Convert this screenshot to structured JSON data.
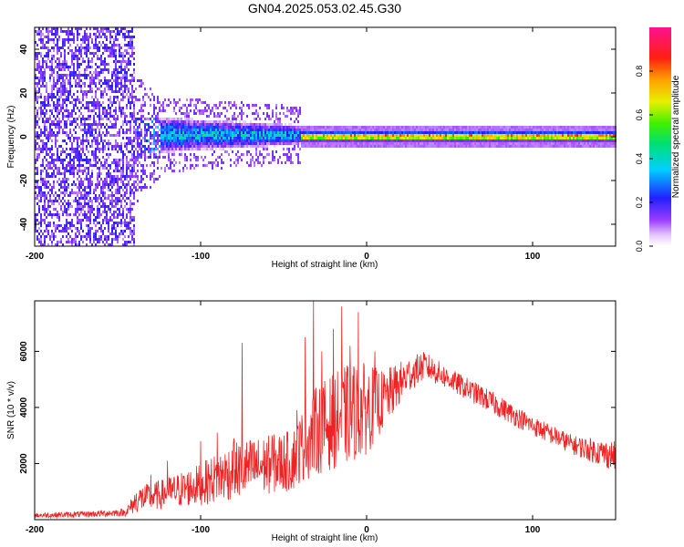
{
  "figure": {
    "title": "GN04.2025.053.02.45.G30"
  },
  "colors": {
    "snr_line": "#ee2222",
    "axis": "#000000",
    "background": "#ffffff"
  },
  "chart_data": [
    {
      "type": "heatmap",
      "title": "",
      "xlabel": "Height of straight line (km)",
      "ylabel": "Frequency (Hz)",
      "xlim": [
        -200,
        150
      ],
      "ylim": [
        -50,
        50
      ],
      "xticks": [
        -200,
        -100,
        0,
        100
      ],
      "yticks": [
        -40,
        -20,
        0,
        20,
        40
      ],
      "colorbar": {
        "label": "Normalized spectral amplitude",
        "range": [
          0,
          1
        ],
        "ticks": [
          0.0,
          0.2,
          0.4,
          0.6,
          0.8
        ],
        "colormap": "rainbow (white-violet-blue-cyan-green-yellow-orange-red-magenta)"
      },
      "features": [
        {
          "name": "low-altitude noise",
          "x_range": [
            -200,
            -140
          ],
          "freq_range": [
            -50,
            50
          ],
          "amplitude": 0.15
        },
        {
          "name": "widening spread",
          "x_range": [
            -140,
            -40
          ],
          "freq_range": [
            -10,
            10
          ],
          "amplitude": 0.35
        },
        {
          "name": "narrow line",
          "x_range": [
            -40,
            150
          ],
          "freq_center": 0.8,
          "freq_halfwidth": 3,
          "amplitude": 0.85
        }
      ]
    },
    {
      "type": "line",
      "title": "",
      "xlabel": "Height of straight line (km)",
      "ylabel": "SNR (10 * v/v)",
      "xlim": [
        -200,
        150
      ],
      "ylim": [
        0,
        7800
      ],
      "xticks": [
        -200,
        -100,
        0,
        100
      ],
      "yticks": [
        2000,
        4000,
        6000
      ],
      "series": [
        {
          "name": "SNR",
          "color": "#ee2222",
          "envelope": {
            "x": [
              -200,
              -170,
              -145,
              -138,
              -125,
              -100,
              -80,
              -60,
              -45,
              -40,
              -30,
              -20,
              -10,
              0,
              10,
              25,
              35,
              50,
              75,
              100,
              125,
              150
            ],
            "low": [
              60,
              80,
              120,
              250,
              350,
              500,
              700,
              900,
              1000,
              1300,
              1600,
              1800,
              2000,
              2300,
              3200,
              4500,
              5000,
              4600,
              3800,
              3000,
              2300,
              1700
            ],
            "high": [
              250,
              300,
              400,
              1200,
              1400,
              2000,
              2800,
              3000,
              3200,
              3800,
              4800,
              5200,
              5600,
              5600,
              5300,
              5800,
              6000,
              5400,
              4600,
              3700,
              3000,
              2800
            ]
          },
          "spikes": [
            {
              "x": -130,
              "y": 1600
            },
            {
              "x": -120,
              "y": 2100
            },
            {
              "x": -100,
              "y": 2800
            },
            {
              "x": -90,
              "y": 3100
            },
            {
              "x": -80,
              "y": 2900
            },
            {
              "x": -75,
              "y": 6300
            },
            {
              "x": -57,
              "y": 3000
            },
            {
              "x": -42,
              "y": 3900
            },
            {
              "x": -37,
              "y": 6500
            },
            {
              "x": -32,
              "y": 7800
            },
            {
              "x": -27,
              "y": 6000
            },
            {
              "x": -20,
              "y": 6800
            },
            {
              "x": -15,
              "y": 7600
            },
            {
              "x": -10,
              "y": 6200
            },
            {
              "x": -5,
              "y": 7400
            },
            {
              "x": 5,
              "y": 6000
            }
          ]
        }
      ]
    }
  ]
}
